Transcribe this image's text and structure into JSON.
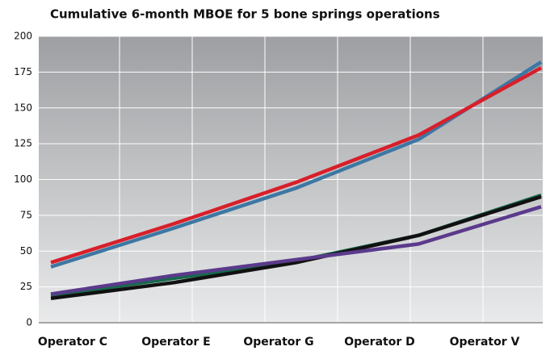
{
  "chart_data": {
    "type": "line",
    "title": "Cumulative 6-month MBOE for 5 bone springs operations",
    "categories": [
      "Operator C",
      "Operator E",
      "Operator G",
      "Operator D",
      "Operator V"
    ],
    "series": [
      {
        "color": "#3d77a3",
        "values": [
          39,
          66,
          94,
          128,
          182
        ]
      },
      {
        "color": "#d81f2a",
        "values": [
          42,
          69,
          98,
          131,
          178
        ]
      },
      {
        "color": "#16694a",
        "values": [
          19,
          31,
          43,
          61,
          89
        ]
      },
      {
        "color": "#111111",
        "values": [
          17,
          28,
          42,
          61,
          88
        ]
      },
      {
        "color": "#5b3a8c",
        "values": [
          20,
          33,
          44,
          55,
          81
        ]
      }
    ],
    "ylim": [
      0,
      200
    ],
    "yticks": [
      0,
      25,
      50,
      75,
      100,
      125,
      150,
      175,
      200
    ],
    "grid": true
  }
}
